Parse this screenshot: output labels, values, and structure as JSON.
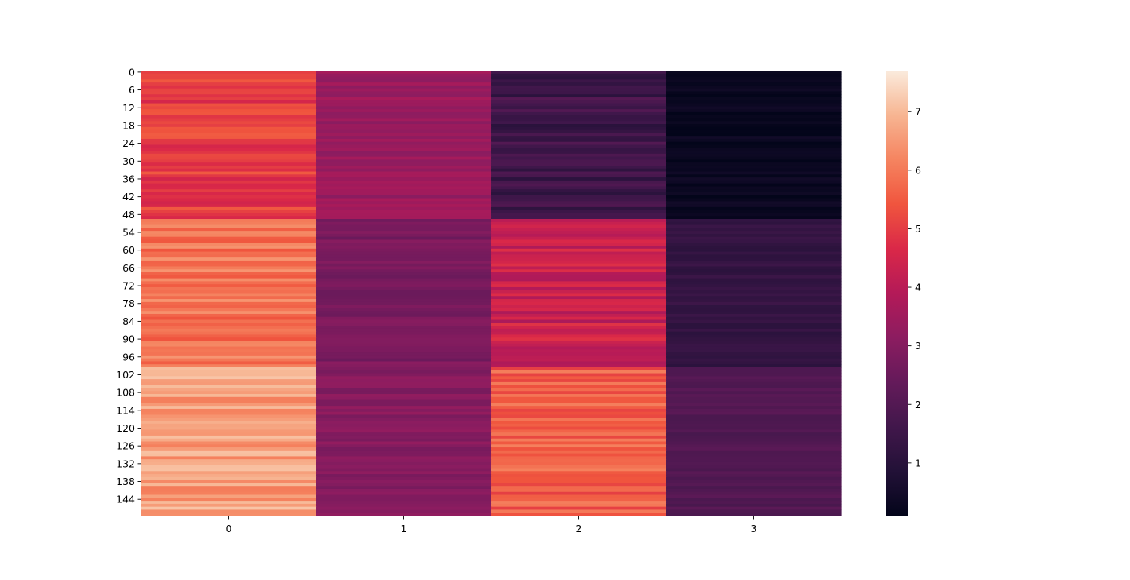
{
  "chart_data": {
    "type": "heatmap",
    "title": "",
    "xlabel": "",
    "ylabel": "",
    "x_categories": [
      "0",
      "1",
      "2",
      "3"
    ],
    "y_tick_labels": [
      "0",
      "6",
      "12",
      "18",
      "24",
      "30",
      "36",
      "42",
      "48",
      "54",
      "60",
      "66",
      "72",
      "78",
      "84",
      "90",
      "96",
      "102",
      "108",
      "114",
      "120",
      "126",
      "132",
      "138",
      "144"
    ],
    "y_tick_step": 6,
    "n_rows": 150,
    "colormap": "rocket",
    "value_range": [
      0.1,
      7.7
    ],
    "colorbar_ticks": [
      "1",
      "2",
      "3",
      "4",
      "5",
      "6",
      "7"
    ],
    "colorbar_tick_values": [
      1,
      2,
      3,
      4,
      5,
      6,
      7
    ],
    "column_profile": [
      {
        "column": "0",
        "rows_0_49": 5.0,
        "rows_50_99": 5.9,
        "rows_100_149": 6.6
      },
      {
        "column": "1",
        "rows_0_49": 3.4,
        "rows_50_99": 2.8,
        "rows_100_149": 3.0
      },
      {
        "column": "2",
        "rows_0_49": 1.5,
        "rows_50_99": 4.3,
        "rows_100_149": 5.6
      },
      {
        "column": "3",
        "rows_0_49": 0.25,
        "rows_50_99": 1.3,
        "rows_100_149": 2.0
      }
    ],
    "grid": false,
    "legend": "colorbar-right"
  }
}
